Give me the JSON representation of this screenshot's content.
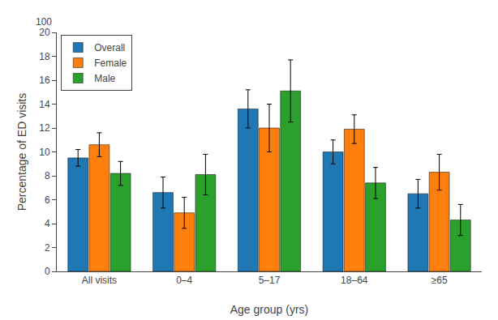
{
  "chart_data": {
    "type": "bar",
    "categories": [
      "All visits",
      "0–4",
      "5–17",
      "18–64",
      "≥65"
    ],
    "series": [
      {
        "name": "Overall",
        "values": [
          9.5,
          6.6,
          13.6,
          10.0,
          6.5
        ],
        "error": [
          [
            0.7,
            0.7
          ],
          [
            1.3,
            1.3
          ],
          [
            1.6,
            1.6
          ],
          [
            1.0,
            1.0
          ],
          [
            1.2,
            1.2
          ]
        ]
      },
      {
        "name": "Female",
        "values": [
          10.6,
          4.9,
          12.0,
          11.9,
          8.3
        ],
        "error": [
          [
            1.0,
            1.0
          ],
          [
            1.3,
            1.3
          ],
          [
            2.0,
            2.0
          ],
          [
            1.2,
            1.2
          ],
          [
            1.5,
            1.5
          ]
        ]
      },
      {
        "name": "Male",
        "values": [
          8.2,
          8.1,
          15.1,
          7.4,
          4.3
        ],
        "error": [
          [
            1.0,
            1.0
          ],
          [
            1.7,
            1.7
          ],
          [
            2.6,
            2.6
          ],
          [
            1.3,
            1.3
          ],
          [
            1.3,
            1.3
          ]
        ]
      }
    ],
    "xlabel": "Age group (yrs)",
    "ylabel": "Percentage of ED visits",
    "ylim": [
      0,
      20
    ],
    "yticks": [
      0,
      2,
      4,
      6,
      8,
      10,
      12,
      14,
      16,
      18,
      20
    ],
    "annotations": [
      "100"
    ],
    "legend": "upper left",
    "grid": false
  }
}
